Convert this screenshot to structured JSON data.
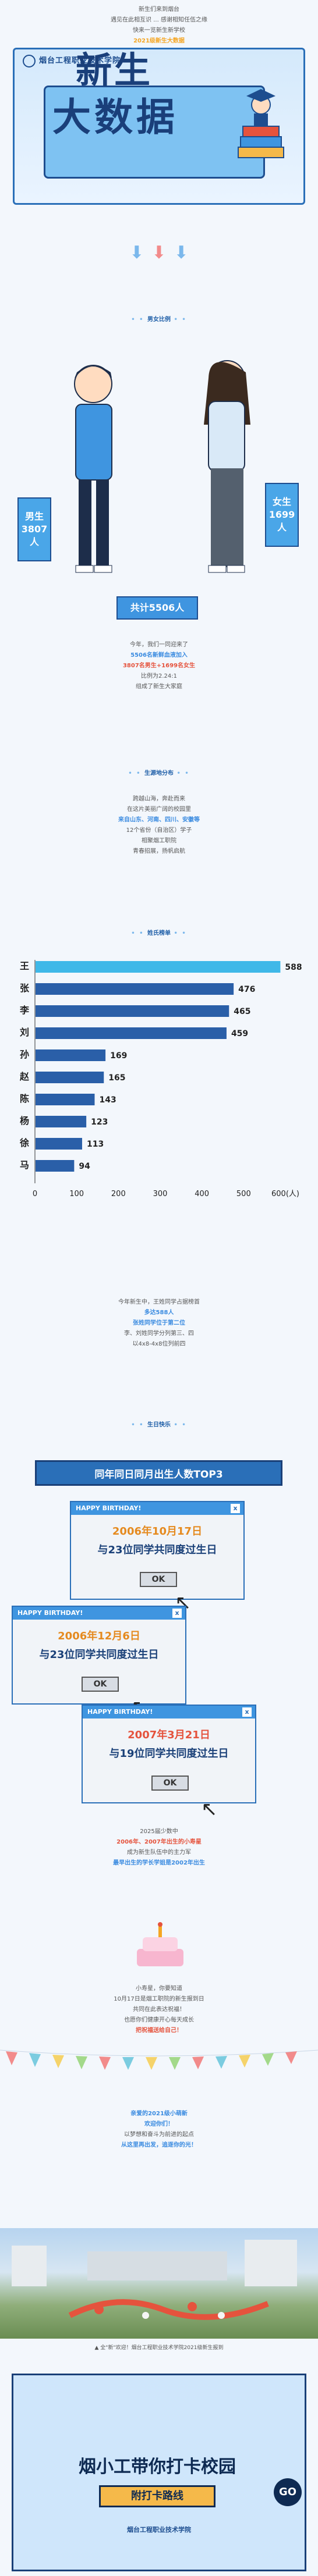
{
  "intro": {
    "lines": [
      "新生们来到烟台",
      "遇见在此相互识 ... 感谢相知任伍之缘",
      "快来一览新生新学校",
      "2021级新生大数据"
    ]
  },
  "banner": {
    "school_logo_text": "烟台工程职业技术学院",
    "title_line1": "新生",
    "title_line2": "大数据"
  },
  "sections": {
    "gender": "男女比例",
    "origin": "生源地分布",
    "surname": "姓氏榜单",
    "birthday": "生日快乐"
  },
  "gender": {
    "male_label": "男生",
    "male_count": "3807人",
    "female_label": "女生",
    "female_count": "1699人",
    "total": "共计5506人"
  },
  "gender_text": [
    "今年，我们一同迎来了",
    "5506名新鲜血液加入",
    "3807名男生+1699名女生",
    "比例为2.24:1",
    "组成了新生大家庭"
  ],
  "origin_text": [
    "跨越山海，奔赴而来",
    "在这片美丽广阔的校园里",
    "来自山东、河南、四川、安徽等",
    "12个省份（自治区）学子",
    "相聚烟工职院",
    "青春招展，扬帆启航"
  ],
  "chart_data": {
    "type": "bar",
    "categories": [
      "王",
      "张",
      "李",
      "刘",
      "孙",
      "赵",
      "陈",
      "杨",
      "徐",
      "马"
    ],
    "values": [
      588,
      476,
      465,
      459,
      169,
      165,
      143,
      123,
      113,
      94
    ],
    "xlabel": "(人)",
    "xlim": [
      0,
      600
    ],
    "xticks": [
      "0",
      "100",
      "200",
      "300",
      "400",
      "500",
      "600(人)"
    ]
  },
  "surname_text": [
    "今年新生中，王姓同学占据榜首",
    "多达588人",
    "张姓同学位于第二位",
    "李、刘姓同学分列第三、四",
    "以4x8-4x8位列前四"
  ],
  "birthday": {
    "title": "同年同日同月出生人数TOP3",
    "popup_header": "HAPPY BIRTHDAY!",
    "close": "x",
    "ok": "OK",
    "items": [
      {
        "date": "2006年10月17日",
        "desc": "与23位同学共同度过生日"
      },
      {
        "date": "2006年12月6日",
        "desc": "与23位同学共同度过生日"
      },
      {
        "date": "2007年3月21日",
        "desc": "与19位同学共同度过生日"
      }
    ]
  },
  "birthday_text": [
    "2025届少数中",
    "2006年、2007年出生的小寿星",
    "成为新生队伍中的主力军",
    "最早出生的学长学姐是2002年出生",
    "",
    "小寿星，你要知道",
    "10月17日是烟工职院的新生报到日",
    "共同在此表达祝福！",
    "也愿你们健康开心每天成长",
    "把祝福送给自己！"
  ],
  "closing_text": [
    "亲爱的2021级小萌新",
    "欢迎你们！",
    "以梦想和奋斗为前进的起点",
    "从这里再出发，追逐你的光！"
  ],
  "photo_caption": "▲ 全\"新\"欢迎！烟台工程职业技术学院2021级新生报到",
  "footer": {
    "title": "烟小工带你打卡校园",
    "button": "附打卡路线",
    "badge": "GO",
    "logo": "烟台工程职业技术学院"
  }
}
